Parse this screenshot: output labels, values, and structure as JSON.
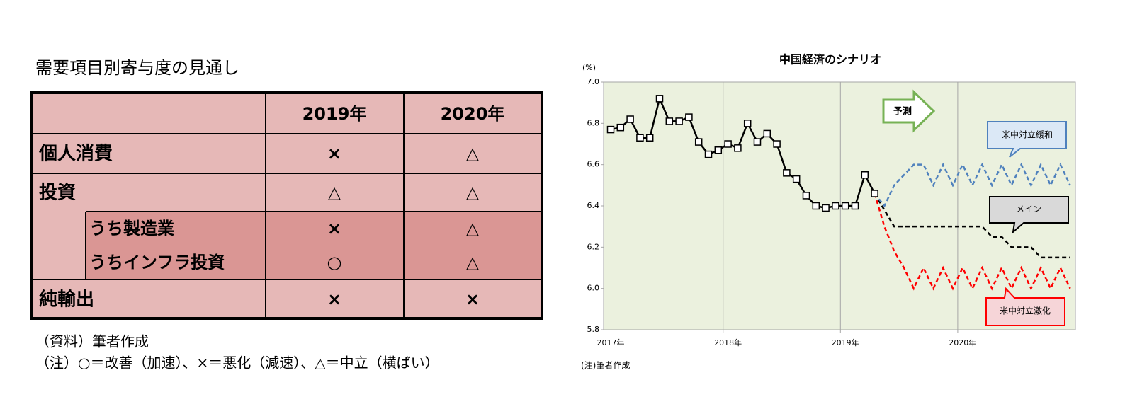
{
  "title": "需要項目別寄与度の見通し",
  "table": {
    "columns": [
      "2019年",
      "2020年"
    ],
    "rows": [
      {
        "label": "個人消費",
        "cells": [
          "×",
          "△"
        ]
      },
      {
        "label": "投資",
        "cells": [
          "△",
          "△"
        ]
      },
      {
        "label": "うち製造業",
        "cells": [
          "×",
          "△"
        ]
      },
      {
        "label": "うちインフラ投資",
        "cells": [
          "○",
          "△"
        ]
      },
      {
        "label": "純輸出",
        "cells": [
          "×",
          "×"
        ]
      }
    ]
  },
  "notes": [
    "（資料）筆者作成",
    "（注）○＝改善（加速）、×＝悪化（減速）、△＝中立（横ばい）"
  ],
  "chart_data": {
    "type": "line",
    "title": "中国経済のシナリオ",
    "y_unit": "(%)",
    "note": "(注)筆者作成",
    "annotation": "予測",
    "categories": [
      "2017年",
      null,
      null,
      null,
      null,
      null,
      null,
      null,
      null,
      null,
      null,
      null,
      "2018年",
      null,
      null,
      null,
      null,
      null,
      null,
      null,
      null,
      null,
      null,
      null,
      "2019年",
      null,
      null,
      null,
      null,
      null,
      null,
      null,
      null,
      null,
      null,
      null,
      "2020年",
      null,
      null,
      null,
      null,
      null,
      null,
      null,
      null,
      null,
      null,
      null
    ],
    "ylim": [
      5.8,
      7.0
    ],
    "yticks": [
      5.8,
      {
        "value": 6,
        "label": "6.0"
      },
      6.2,
      6.4,
      6.6,
      6.8,
      {
        "value": 7,
        "label": "7.0"
      }
    ],
    "xgrid": true,
    "series": [
      {
        "color": "#000000",
        "marker": "square",
        "dash": false,
        "values": [
          6.77,
          6.78,
          6.82,
          6.73,
          6.73,
          6.92,
          6.81,
          6.81,
          6.83,
          6.71,
          6.65,
          6.67,
          6.7,
          6.68,
          6.8,
          6.71,
          6.75,
          6.7,
          6.56,
          6.53,
          6.45,
          6.4,
          6.39,
          6.4,
          6.4,
          6.4,
          6.55,
          6.46,
          null,
          null,
          null,
          null,
          null,
          null,
          null,
          null,
          null,
          null,
          null,
          null,
          null,
          null,
          null,
          null,
          null,
          null,
          null,
          null
        ]
      },
      {
        "name": "米中対立緩和",
        "color": "#4f81bd",
        "dash": true,
        "values": [
          null,
          null,
          null,
          null,
          null,
          null,
          null,
          null,
          null,
          null,
          null,
          null,
          null,
          null,
          null,
          null,
          null,
          null,
          null,
          null,
          null,
          null,
          null,
          null,
          null,
          null,
          null,
          6.46,
          6.4,
          6.5,
          6.55,
          6.6,
          6.6,
          6.5,
          6.6,
          6.5,
          6.6,
          6.5,
          6.6,
          6.5,
          6.6,
          6.5,
          6.6,
          6.5,
          6.6,
          6.5,
          6.6,
          6.5
        ]
      },
      {
        "name": "メイン",
        "color": "#000000",
        "dash": true,
        "values": [
          null,
          null,
          null,
          null,
          null,
          null,
          null,
          null,
          null,
          null,
          null,
          null,
          null,
          null,
          null,
          null,
          null,
          null,
          null,
          null,
          null,
          null,
          null,
          null,
          null,
          null,
          null,
          6.46,
          6.38,
          6.3,
          6.3,
          6.3,
          6.3,
          6.3,
          6.3,
          6.3,
          6.3,
          6.3,
          6.3,
          6.25,
          6.25,
          6.2,
          6.2,
          6.2,
          6.15,
          6.15,
          6.15,
          6.15
        ]
      },
      {
        "name": "米中対立激化",
        "color": "#ff0000",
        "dash": true,
        "values": [
          null,
          null,
          null,
          null,
          null,
          null,
          null,
          null,
          null,
          null,
          null,
          null,
          null,
          null,
          null,
          null,
          null,
          null,
          null,
          null,
          null,
          null,
          null,
          null,
          null,
          null,
          null,
          6.46,
          6.3,
          6.18,
          6.1,
          6.0,
          6.1,
          6.0,
          6.1,
          6.0,
          6.1,
          6.0,
          6.1,
          6.0,
          6.1,
          6.0,
          6.1,
          6.0,
          6.1,
          6.0,
          6.1,
          6.0
        ]
      }
    ]
  }
}
